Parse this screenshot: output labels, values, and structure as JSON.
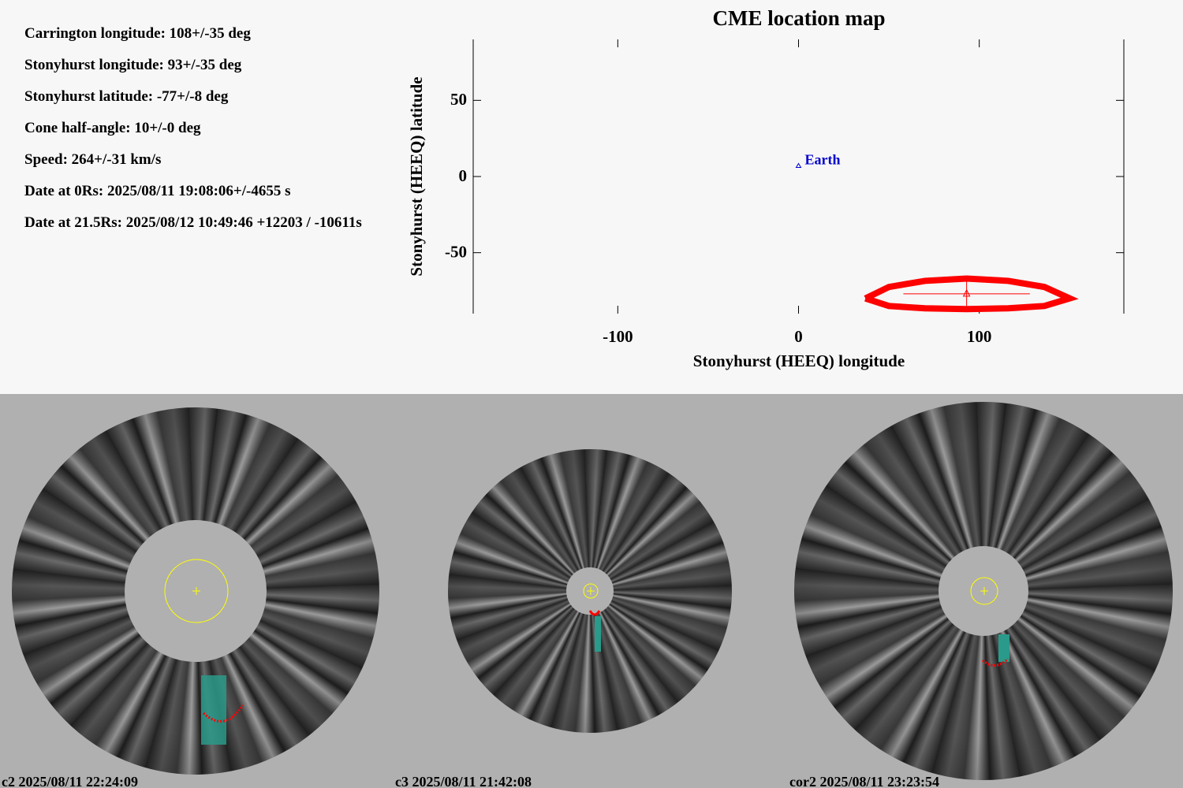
{
  "info": [
    "Carrington longitude: 108+/-35 deg",
    "Stonyhurst longitude: 93+/-35 deg",
    "Stonyhurst latitude: -77+/-8 deg",
    "Cone half-angle: 10+/-0 deg",
    "Speed: 264+/-31 km/s",
    "Date at 0Rs: 2025/08/11 19:08:06+/-4655 s",
    "Date at 21.5Rs: 2025/08/12 10:49:46 +12203 / -10611s"
  ],
  "chart_data": {
    "type": "scatter",
    "title": "CME location map",
    "x_label": "Stonyhurst (HEEQ) longitude",
    "y_label": "Stonyhurst (HEEQ) latitude",
    "xlim": [
      -180,
      180
    ],
    "ylim": [
      -90,
      90
    ],
    "xticks": [
      -100,
      0,
      100
    ],
    "yticks": [
      50,
      0,
      -50
    ],
    "earth": {
      "label": "Earth",
      "lon": 0,
      "lat": 7,
      "color": "#0000cc"
    },
    "cme": {
      "lon": 93,
      "lat": -77,
      "lon_err": 35,
      "lat_err": 8,
      "color": "#ff0000"
    },
    "cone_outline": {
      "lon": [
        37,
        50,
        70,
        93,
        116,
        136,
        150,
        136,
        116,
        93,
        70,
        50,
        37
      ],
      "lat": [
        -80,
        -72.5,
        -68.5,
        -67,
        -68.5,
        -72.5,
        -80,
        -85,
        -86.5,
        -87,
        -86.5,
        -85,
        -80
      ],
      "color": "#ff0000"
    }
  },
  "images": [
    {
      "caption": "c2 2025/08/11 22:24:09"
    },
    {
      "caption": "c3 2025/08/11 21:42:08"
    },
    {
      "caption": "cor2 2025/08/11 23:23:54"
    }
  ]
}
